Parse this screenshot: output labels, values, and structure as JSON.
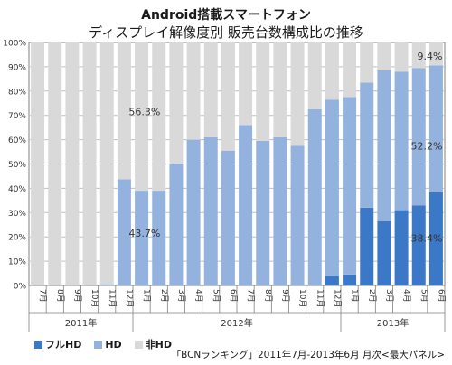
{
  "chart_data": {
    "type": "bar",
    "stacked": true,
    "title_line1": "Android搭載スマートフォン",
    "title_line2": "ディスプレイ解像度別 販売台数構成比の推移",
    "categories": [
      "7月",
      "8月",
      "9月",
      "10月",
      "11月",
      "12月",
      "1月",
      "2月",
      "3月",
      "4月",
      "5月",
      "6月",
      "7月",
      "8月",
      "9月",
      "10月",
      "11月",
      "12月",
      "1月",
      "2月",
      "3月",
      "4月",
      "5月",
      "6月"
    ],
    "year_groups": [
      {
        "label": "2011年",
        "count": 6
      },
      {
        "label": "2012年",
        "count": 12
      },
      {
        "label": "2013年",
        "count": 6
      }
    ],
    "series": [
      {
        "name": "フルHD",
        "color": "#3b78c7",
        "values": [
          0,
          0,
          0,
          0,
          0,
          0,
          0,
          0,
          0,
          0,
          0,
          0,
          0,
          0,
          0,
          0,
          0,
          4,
          4.5,
          32,
          26.5,
          31,
          33,
          38.4
        ]
      },
      {
        "name": "HD",
        "color": "#93b3de",
        "values": [
          0,
          0,
          0,
          0,
          0.5,
          43.7,
          39,
          39,
          50,
          60,
          61,
          55.5,
          66,
          59.5,
          61,
          57.5,
          72.5,
          72.5,
          73,
          51.5,
          62,
          57,
          56.5,
          52.2
        ]
      },
      {
        "name": "非HD",
        "color": "#d9d9d9",
        "values": [
          100,
          100,
          100,
          100,
          99.5,
          56.3,
          61,
          61,
          50,
          40,
          39,
          44.5,
          34,
          40.5,
          39,
          42.5,
          27.5,
          23.5,
          22.5,
          16.5,
          11.5,
          12,
          10.5,
          9.4
        ]
      }
    ],
    "ylim": [
      0,
      100
    ],
    "y_ticks": [
      "0%",
      "10%",
      "20%",
      "30%",
      "40%",
      "50%",
      "60%",
      "70%",
      "80%",
      "90%",
      "100%"
    ],
    "grid": true,
    "legend_position": "bottom-left",
    "annotations": {
      "nonhd_2011_12": "56.3%",
      "hd_2011_12": "43.7%",
      "nonhd_2013_06": "9.4%",
      "hd_2013_06": "52.2%",
      "fullhd_2013_06": "38.4%"
    }
  },
  "legend": {
    "fullhd": "フルHD",
    "hd": "HD",
    "nonhd": "非HD",
    "fullhd_color": "#3b78c7",
    "hd_color": "#93b3de",
    "nonhd_color": "#d9d9d9"
  },
  "source": "「BCNランキング」2011年7月-2013年6月 月次<最大パネル>"
}
